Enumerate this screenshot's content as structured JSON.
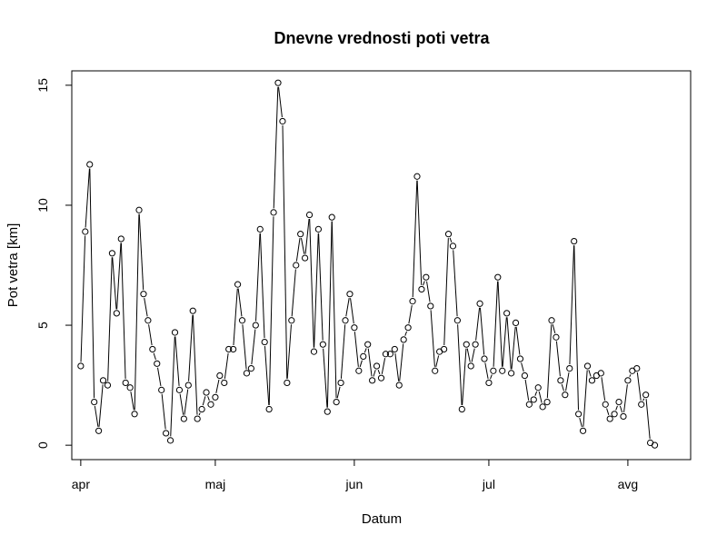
{
  "chart_data": {
    "type": "line",
    "title": "Dnevne vrednosti poti vetra",
    "xlabel": "Datum",
    "ylabel": "Pot vetra [km]",
    "x_start": "2013-04-01",
    "x_end": "2013-08-11",
    "xlim": [
      "2013-03-30",
      "2013-08-15"
    ],
    "ylim": [
      -0.6,
      15.6
    ],
    "x_ticks": [
      {
        "date": "2013-04-01",
        "label": "apr"
      },
      {
        "date": "2013-05-01",
        "label": "maj"
      },
      {
        "date": "2013-06-01",
        "label": "jun"
      },
      {
        "date": "2013-07-01",
        "label": "jul"
      },
      {
        "date": "2013-08-01",
        "label": "avg"
      }
    ],
    "y_ticks": [
      0,
      5,
      10,
      15
    ],
    "series": [
      {
        "line_color": "#000000",
        "marker": "open-circle",
        "values": [
          3.3,
          8.9,
          11.7,
          1.8,
          0.6,
          2.7,
          2.5,
          8.0,
          5.5,
          8.6,
          2.6,
          2.4,
          1.3,
          9.8,
          6.3,
          5.2,
          4.0,
          3.4,
          2.3,
          0.5,
          0.2,
          4.7,
          2.3,
          1.1,
          2.5,
          5.6,
          1.1,
          1.5,
          2.2,
          1.7,
          2.0,
          2.9,
          2.6,
          4.0,
          4.0,
          6.7,
          5.2,
          3.0,
          3.2,
          5.0,
          9.0,
          4.3,
          1.5,
          9.7,
          15.1,
          13.5,
          2.6,
          5.2,
          7.5,
          8.8,
          7.8,
          9.6,
          3.9,
          9.0,
          4.2,
          1.4,
          9.5,
          1.8,
          2.6,
          5.2,
          6.3,
          4.9,
          3.1,
          3.7,
          4.2,
          2.7,
          3.3,
          2.8,
          3.8,
          3.8,
          4.0,
          2.5,
          4.4,
          4.9,
          6.0,
          11.2,
          6.5,
          7.0,
          5.8,
          3.1,
          3.9,
          4.0,
          8.8,
          8.3,
          5.2,
          1.5,
          4.2,
          3.3,
          4.2,
          5.9,
          3.6,
          2.6,
          3.1,
          7.0,
          3.1,
          5.5,
          3.0,
          5.1,
          3.6,
          2.9,
          1.7,
          1.9,
          2.4,
          1.6,
          1.8,
          5.2,
          4.5,
          2.7,
          2.1,
          3.2,
          8.5,
          1.3,
          0.6,
          3.3,
          2.7,
          2.9,
          3.0,
          1.7,
          1.1,
          1.3,
          1.8,
          1.2,
          2.7,
          3.1,
          3.2,
          1.7,
          2.1,
          0.1,
          0.0
        ]
      }
    ],
    "grid": false,
    "legend": "none"
  }
}
